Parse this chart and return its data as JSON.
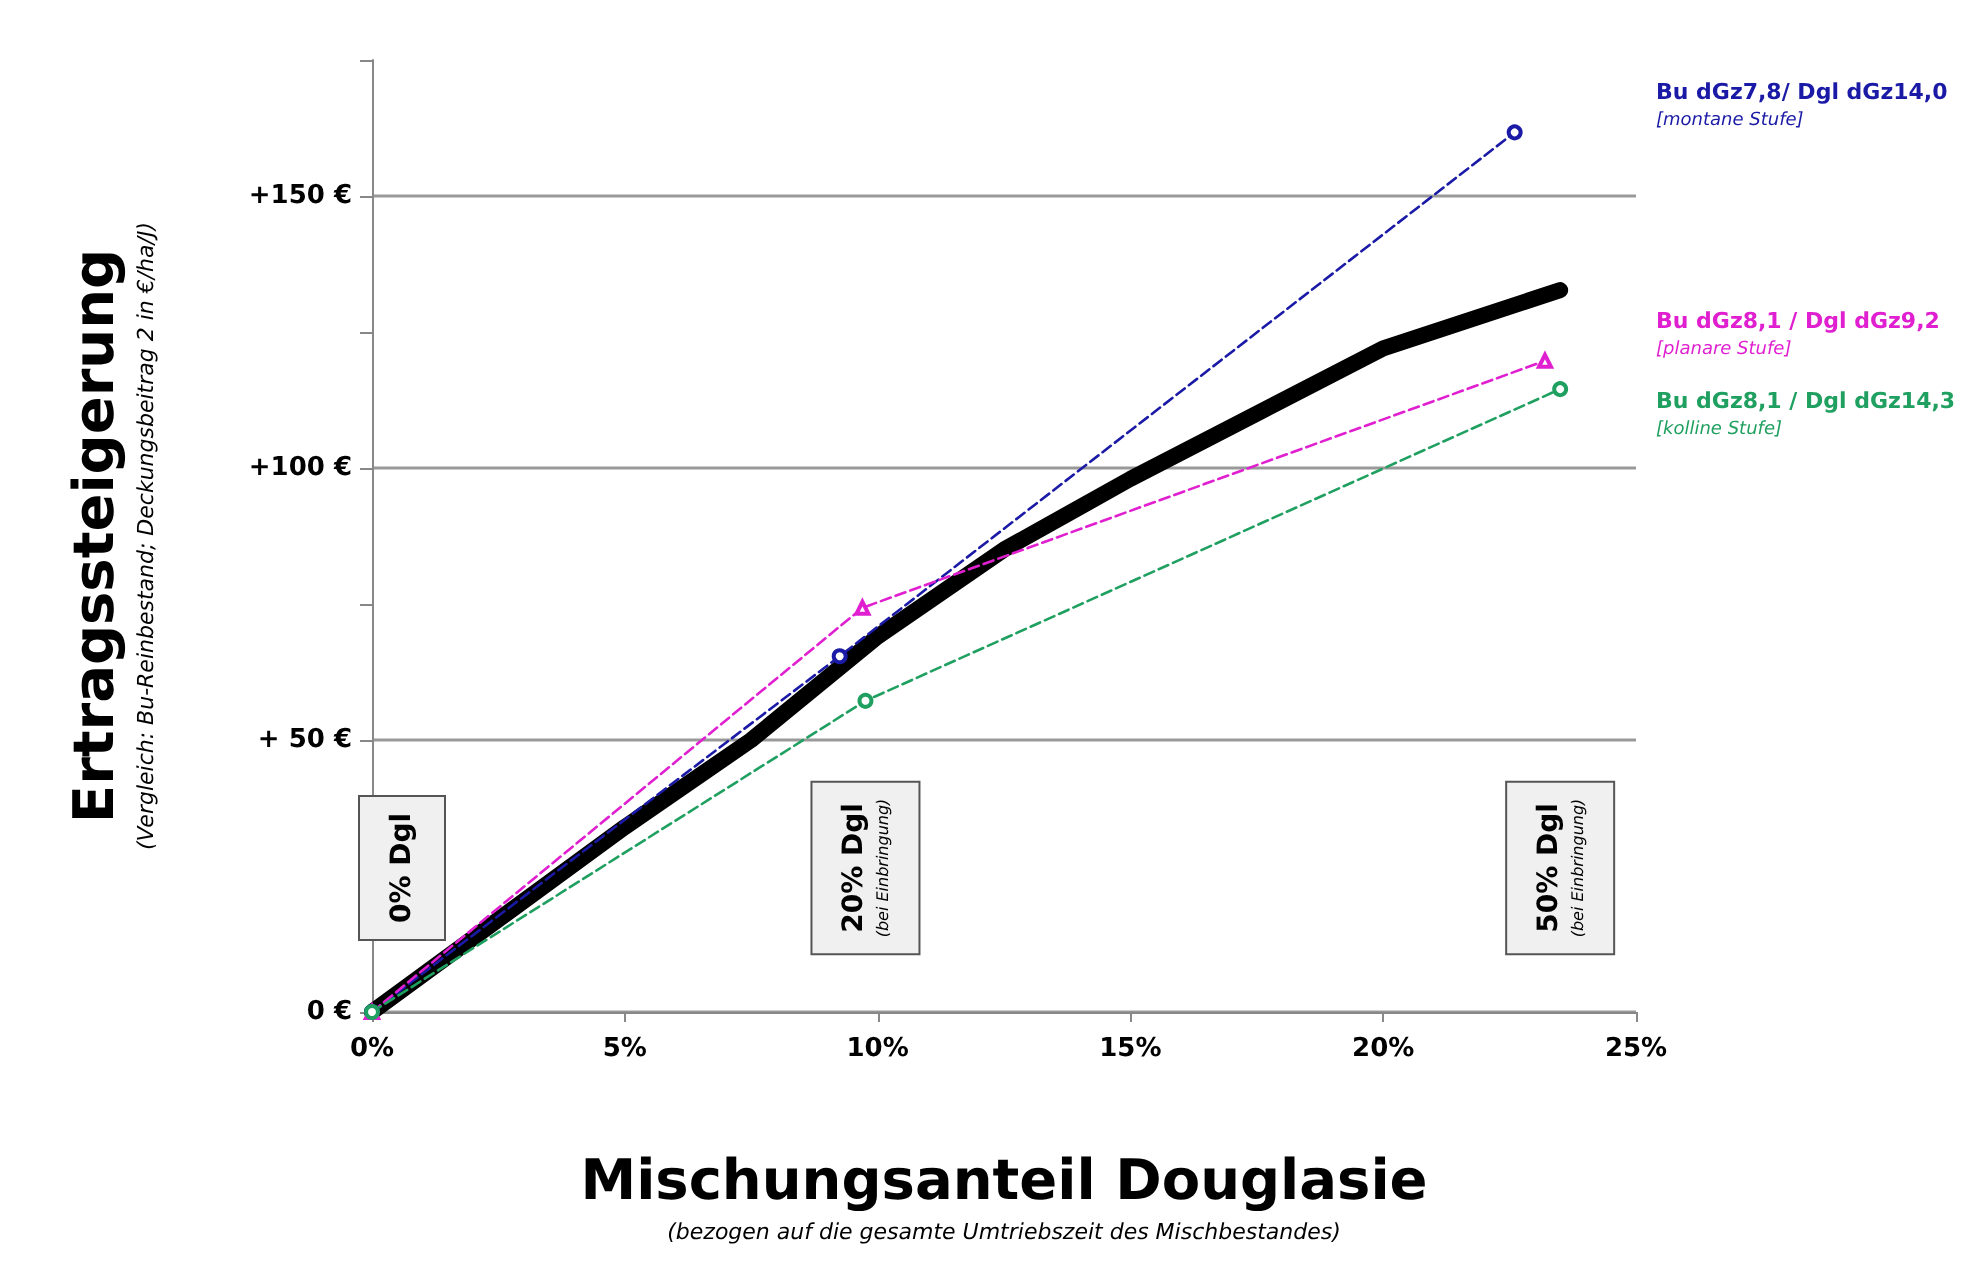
{
  "chart_data": {
    "type": "line",
    "xlabel": "Mischungsanteil Douglasie\n(bezogen auf die gesamte Umtriebszeit des Mischbestandes)",
    "ylabel": "Ertragssteigerung\n(Vergleich: Bu-Reinbestand; Deckungsbeitrag 2 in €/ha/J)",
    "xlim": [
      0,
      25
    ],
    "xticks": [
      {
        "value": 0,
        "label": "0%"
      },
      {
        "value": 5,
        "label": "5%"
      },
      {
        "value": 10,
        "label": "10%"
      },
      {
        "value": 15,
        "label": "15%"
      },
      {
        "value": 20,
        "label": "20%"
      },
      {
        "value": 25,
        "label": "25%"
      }
    ],
    "ylim": [
      0,
      175
    ],
    "yticks": [
      {
        "value": 0,
        "label": "0 €"
      },
      {
        "value": 25,
        "label": null
      },
      {
        "value": 50,
        "label": "+ 50 €"
      },
      {
        "value": 75,
        "label": null
      },
      {
        "value": 100,
        "label": "+100 €"
      },
      {
        "value": 125,
        "label": null
      },
      {
        "value": 150,
        "label": "+150 €"
      },
      {
        "value": 175,
        "label": null
      }
    ],
    "grid": "y",
    "legend": false,
    "series": [
      {
        "color": "#000000",
        "marker": "none",
        "line_style": "solid",
        "x": [
          0,
          2.5,
          5,
          7.5,
          10,
          12.5,
          15,
          17.5,
          20,
          23.5
        ],
        "values": [
          0,
          17,
          34,
          50,
          69,
          85,
          98,
          110,
          122,
          132.7
        ]
      },
      {
        "name": "Bu dGz7,8/ Dgl dGz14,0\n[montane Stufe]",
        "color": "#1a1aa6",
        "marker": "circle",
        "line_style": "dashed",
        "x": [
          0,
          9.25,
          22.6
        ],
        "values": [
          0,
          65.4,
          161.7
        ]
      },
      {
        "name": "Bu dGz8,1 / Dgl dGz9,2\n[planare Stufe]",
        "color": "#e020d0",
        "marker": "triangle",
        "line_style": "dashed",
        "x": [
          0,
          9.7,
          23.2
        ],
        "values": [
          0,
          74.3,
          119.7
        ]
      },
      {
        "name": "Bu dGz8,1 / Dgl dGz14,3\n[kolline Stufe]",
        "color": "#20a060",
        "marker": "circle",
        "line_style": "dashed",
        "x": [
          0,
          9.76,
          23.5
        ],
        "values": [
          0,
          57.2,
          114.5
        ]
      }
    ],
    "annotations": [
      "0% Dgl",
      "20% Dgl\n(bei Einbringung)",
      "50% Dgl\n(bei Einbringung)"
    ]
  }
}
